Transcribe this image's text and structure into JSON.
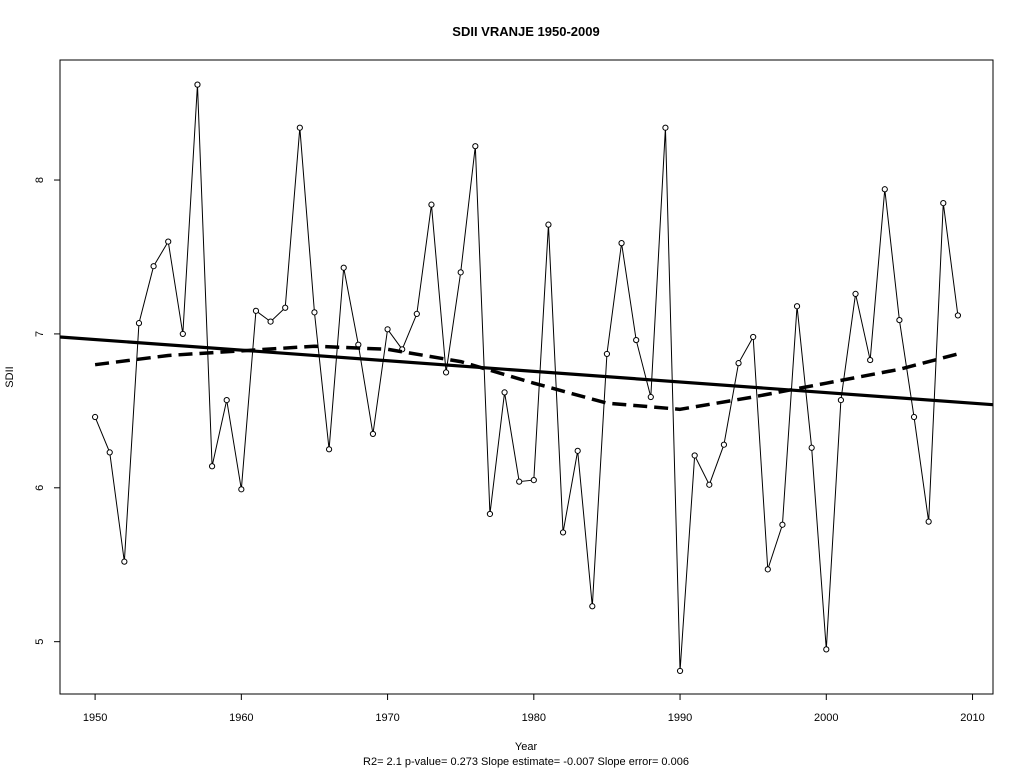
{
  "chart_data": {
    "type": "line",
    "title": "SDII   VRANJE 1950-2009",
    "xlabel": "Year",
    "ylabel": "SDII",
    "footer": "R2= 2.1  p-value= 0.273  Slope estimate= -0.007  Slope error= 0.006",
    "xlim": [
      1947.6,
      2011.4
    ],
    "ylim": [
      4.66,
      8.78
    ],
    "x_ticks": [
      1950,
      1960,
      1970,
      1980,
      1990,
      2000,
      2010
    ],
    "y_ticks": [
      5,
      6,
      7,
      8
    ],
    "grid": false,
    "x": [
      1950,
      1951,
      1952,
      1953,
      1954,
      1955,
      1956,
      1957,
      1958,
      1959,
      1960,
      1961,
      1962,
      1963,
      1964,
      1965,
      1966,
      1967,
      1968,
      1969,
      1970,
      1971,
      1972,
      1973,
      1974,
      1975,
      1976,
      1977,
      1978,
      1979,
      1980,
      1981,
      1982,
      1983,
      1984,
      1985,
      1986,
      1987,
      1988,
      1989,
      1990,
      1991,
      1992,
      1993,
      1994,
      1995,
      1996,
      1997,
      1998,
      1999,
      2000,
      2001,
      2002,
      2003,
      2004,
      2005,
      2006,
      2007,
      2008,
      2009
    ],
    "series": [
      {
        "style": "line-with-open-circles",
        "values": [
          6.46,
          6.23,
          5.52,
          7.07,
          7.44,
          7.6,
          7.0,
          8.62,
          6.14,
          6.57,
          5.99,
          7.15,
          7.08,
          7.17,
          8.34,
          7.14,
          6.25,
          7.43,
          6.93,
          6.35,
          7.03,
          6.9,
          7.13,
          7.84,
          6.75,
          7.4,
          8.22,
          5.83,
          6.62,
          6.04,
          6.05,
          7.71,
          5.71,
          6.24,
          5.23,
          6.87,
          7.59,
          6.96,
          6.59,
          8.34,
          4.81,
          6.21,
          6.02,
          6.28,
          6.81,
          6.98,
          5.47,
          5.76,
          7.18,
          6.26,
          4.95,
          6.57,
          7.26,
          6.83,
          7.94,
          7.09,
          6.46,
          5.78,
          7.85,
          7.12
        ]
      },
      {
        "style": "solid-trend",
        "x": [
          1947.6,
          2011.4
        ],
        "values": [
          6.98,
          6.54
        ]
      },
      {
        "style": "dashed-smooth",
        "x": [
          1950,
          1955,
          1960,
          1965,
          1970,
          1975,
          1980,
          1985,
          1990,
          1995,
          2000,
          2005,
          2009
        ],
        "values": [
          6.8,
          6.86,
          6.89,
          6.92,
          6.9,
          6.82,
          6.68,
          6.55,
          6.51,
          6.59,
          6.68,
          6.77,
          6.87
        ]
      }
    ]
  }
}
